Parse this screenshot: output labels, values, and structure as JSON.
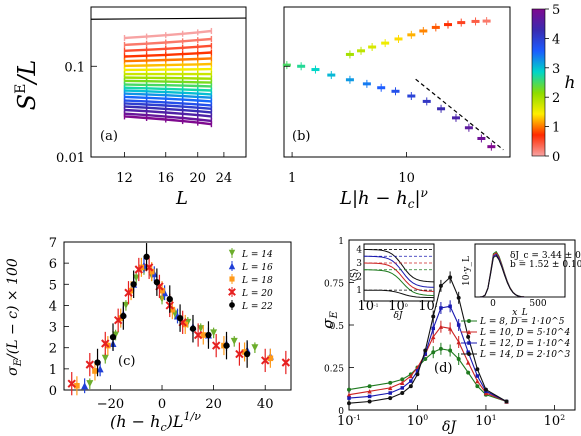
{
  "colors": {
    "axis": "#000000",
    "grid": "#ffffff"
  },
  "chart_data": [
    {
      "id": "a",
      "type": "line",
      "panel_label": "(a)",
      "xlabel": "L",
      "ylabel": "S^E/L",
      "xscale": "log",
      "yscale": "log",
      "xlim": [
        9.5,
        28
      ],
      "ylim": [
        0.01,
        0.45
      ],
      "xticks": [
        "12",
        "16",
        "20",
        "24"
      ],
      "yticks": [
        "0.01",
        "0.1"
      ],
      "x": [
        12,
        14,
        16,
        18,
        20,
        22
      ],
      "colorbar": {
        "label": "h",
        "ticks": [
          "0",
          "1",
          "2",
          "3",
          "4",
          "5"
        ],
        "range": [
          0,
          5
        ],
        "colors": [
          "#f7a3a3",
          "#ff2a00",
          "#ffee00",
          "#8ddc00",
          "#00d6c8",
          "#1c5cff",
          "#3a2bb0",
          "#7f0a8f"
        ]
      },
      "series_h": [
        0.0,
        0.25,
        0.5,
        0.75,
        1.0,
        1.25,
        1.5,
        1.75,
        2.0,
        2.25,
        2.5,
        2.75,
        3.0,
        3.25,
        3.5,
        3.75,
        4.0,
        4.25,
        4.5,
        4.75,
        5.0
      ],
      "series_y_start": [
        0.205,
        0.172,
        0.148,
        0.128,
        0.114,
        0.101,
        0.091,
        0.082,
        0.075,
        0.069,
        0.063,
        0.058,
        0.054,
        0.05,
        0.046,
        0.042,
        0.039,
        0.036,
        0.033,
        0.03,
        0.028
      ],
      "series_y_end": [
        0.245,
        0.2,
        0.168,
        0.142,
        0.122,
        0.106,
        0.093,
        0.082,
        0.073,
        0.066,
        0.06,
        0.054,
        0.049,
        0.045,
        0.041,
        0.037,
        0.034,
        0.031,
        0.028,
        0.025,
        0.023
      ],
      "reference_line": [
        [
          9.5,
          0.33
        ],
        [
          28,
          0.34
        ]
      ]
    },
    {
      "id": "b",
      "type": "scatter",
      "panel_label": "(b)",
      "xlabel": "L|h − h_c|^ν",
      "xscale": "log",
      "yscale": "log",
      "xlim": [
        0.85,
        80
      ],
      "ylim": [
        0.01,
        0.45
      ],
      "xticks": [
        "1",
        "10"
      ],
      "upper_branch": [
        [
          3.2,
          0.135
        ],
        [
          4.0,
          0.148
        ],
        [
          5.0,
          0.163
        ],
        [
          6.5,
          0.18
        ],
        [
          8.5,
          0.2
        ],
        [
          11,
          0.222
        ],
        [
          14,
          0.245
        ],
        [
          18,
          0.268
        ],
        [
          23,
          0.288
        ],
        [
          30,
          0.303
        ],
        [
          40,
          0.312
        ],
        [
          50,
          0.315
        ]
      ],
      "lower_branch": [
        [
          0.9,
          0.103
        ],
        [
          1.2,
          0.1
        ],
        [
          1.6,
          0.092
        ],
        [
          2.2,
          0.08
        ],
        [
          3.2,
          0.071
        ],
        [
          4.5,
          0.064
        ],
        [
          6,
          0.058
        ],
        [
          8,
          0.053
        ],
        [
          11,
          0.047
        ],
        [
          15,
          0.041
        ],
        [
          20,
          0.034
        ],
        [
          27,
          0.027
        ],
        [
          35,
          0.021
        ],
        [
          45,
          0.016
        ],
        [
          55,
          0.013
        ]
      ],
      "dashed_line": [
        [
          12,
          0.072
        ],
        [
          70,
          0.012
        ]
      ]
    },
    {
      "id": "c",
      "type": "scatter",
      "panel_label": "(c)",
      "xlabel": "(h − h_c)L^{1/ν}",
      "ylabel": "σ_E/(L − c) × 100",
      "xlim": [
        -38,
        50
      ],
      "ylim": [
        0,
        7
      ],
      "xticks": [
        "−20",
        "0",
        "20",
        "40"
      ],
      "yticks": [
        "0",
        "1",
        "2",
        "3",
        "4",
        "5",
        "6",
        "7"
      ],
      "series": [
        {
          "name": "L = 14",
          "marker": "triangle-down",
          "color": "#6cad2c",
          "points": [
            [
              -28,
              0.3
            ],
            [
              -22,
              1.5
            ],
            [
              -18,
              2.6
            ],
            [
              -14,
              4.0
            ],
            [
              -10,
              5.3
            ],
            [
              -7,
              5.7
            ],
            [
              -4,
              5.4
            ],
            [
              0,
              4.3
            ],
            [
              5,
              3.6
            ],
            [
              10,
              3.2
            ],
            [
              15,
              2.9
            ],
            [
              20,
              2.7
            ],
            [
              28,
              2.3
            ],
            [
              36,
              2.0
            ]
          ]
        },
        {
          "name": "L = 16",
          "marker": "triangle-up",
          "color": "#1f3fd6",
          "points": [
            [
              -30,
              0.2
            ],
            [
              -24,
              1.0
            ],
            [
              -19,
              2.2
            ],
            [
              -15,
              3.6
            ],
            [
              -11,
              5.0
            ],
            [
              -7,
              5.9
            ],
            [
              -3,
              5.5
            ],
            [
              1,
              4.6
            ],
            [
              6,
              3.5
            ],
            [
              12,
              3.0
            ],
            [
              18,
              2.6
            ],
            [
              25,
              2.2
            ],
            [
              33,
              1.9
            ],
            [
              42,
              1.6
            ]
          ]
        },
        {
          "name": "L = 18",
          "marker": "square",
          "color": "#ff9a1a",
          "points": [
            [
              -33,
              0.2
            ],
            [
              -26,
              0.9
            ],
            [
              -21,
              2.1
            ],
            [
              -16,
              3.4
            ],
            [
              -12,
              4.7
            ],
            [
              -8,
              5.8
            ],
            [
              -4,
              5.6
            ],
            [
              0,
              4.7
            ],
            [
              4,
              3.8
            ],
            [
              9,
              3.1
            ],
            [
              16,
              2.6
            ],
            [
              24,
              2.1
            ],
            [
              32,
              1.8
            ],
            [
              42,
              1.5
            ]
          ]
        },
        {
          "name": "L = 20",
          "marker": "cross",
          "color": "#e62020",
          "points": [
            [
              -35,
              0.3
            ],
            [
              -28,
              1.2
            ],
            [
              -22,
              2.2
            ],
            [
              -17,
              3.3
            ],
            [
              -13,
              4.6
            ],
            [
              -9,
              5.7
            ],
            [
              -5,
              5.8
            ],
            [
              -1,
              4.9
            ],
            [
              3,
              4.0
            ],
            [
              8,
              3.2
            ],
            [
              14,
              2.6
            ],
            [
              21,
              2.1
            ],
            [
              30,
              1.7
            ],
            [
              40,
              1.4
            ],
            [
              48,
              1.3
            ]
          ]
        },
        {
          "name": "L = 22",
          "marker": "circle",
          "color": "#000000",
          "points": [
            [
              -25,
              1.3
            ],
            [
              -19,
              2.5
            ],
            [
              -15,
              3.5
            ],
            [
              -11,
              5.0
            ],
            [
              -6,
              6.3
            ],
            [
              -2,
              5.1
            ],
            [
              3,
              4.3
            ],
            [
              7,
              3.4
            ],
            [
              12,
              2.9
            ],
            [
              18,
              2.6
            ],
            [
              25,
              2.1
            ],
            [
              33,
              1.7
            ]
          ]
        }
      ]
    },
    {
      "id": "d",
      "type": "line",
      "panel_label": "(d)",
      "xlabel": "δJ",
      "ylabel": "σ_E",
      "xscale": "log",
      "xlim": [
        0.1,
        200
      ],
      "ylim": [
        0,
        1.0
      ],
      "xticks": [
        "10^{-1}",
        "10^{0}",
        "10^{1}",
        "10^{2}"
      ],
      "yticks": [
        "0",
        "0.25",
        "0.5",
        "0.75",
        "1"
      ],
      "x": [
        0.1,
        0.2,
        0.4,
        0.6,
        0.8,
        1.0,
        1.3,
        1.7,
        2.2,
        3.0,
        4.0,
        5.5,
        7.5,
        10,
        20
      ],
      "series": [
        {
          "name": "L = 8, D = 1·10^5",
          "color": "#1f7a1f",
          "marker": "circle",
          "values": [
            0.12,
            0.14,
            0.16,
            0.18,
            0.21,
            0.25,
            0.3,
            0.34,
            0.36,
            0.35,
            0.3,
            0.22,
            0.14,
            0.09,
            0.05
          ]
        },
        {
          "name": "L = 10, D = 5·10^4",
          "color": "#cc2222",
          "marker": "triangle-up",
          "values": [
            0.09,
            0.11,
            0.13,
            0.16,
            0.2,
            0.25,
            0.33,
            0.43,
            0.49,
            0.48,
            0.4,
            0.28,
            0.17,
            0.1,
            0.05
          ]
        },
        {
          "name": "L = 12, D = 1·10^4",
          "color": "#1a1ab0",
          "marker": "square",
          "values": [
            0.07,
            0.08,
            0.1,
            0.13,
            0.17,
            0.23,
            0.33,
            0.48,
            0.6,
            0.61,
            0.5,
            0.34,
            0.2,
            0.11,
            0.05
          ]
        },
        {
          "name": "L = 14, D = 2·10^3",
          "color": "#111111",
          "marker": "circle",
          "values": [
            0.04,
            0.05,
            0.07,
            0.1,
            0.14,
            0.21,
            0.35,
            0.55,
            0.73,
            0.78,
            0.66,
            0.43,
            0.24,
            0.12,
            0.05
          ]
        }
      ],
      "inset_left": {
        "ylabel": "⟨S⟩",
        "xlabel": "δJ",
        "yticks": [
          "1",
          "2",
          "3",
          "4"
        ],
        "xticks": [
          "10^{-1}",
          "10^{0}",
          "10^{1}"
        ]
      },
      "inset_right": {
        "ylabel": "10·y_L",
        "xlabel": "x_L",
        "xticks": [
          "0",
          "500"
        ],
        "annotations": [
          "δJ_c = 3.44 ± 0.06",
          "b = 1.52 ± 0.10"
        ]
      }
    }
  ]
}
